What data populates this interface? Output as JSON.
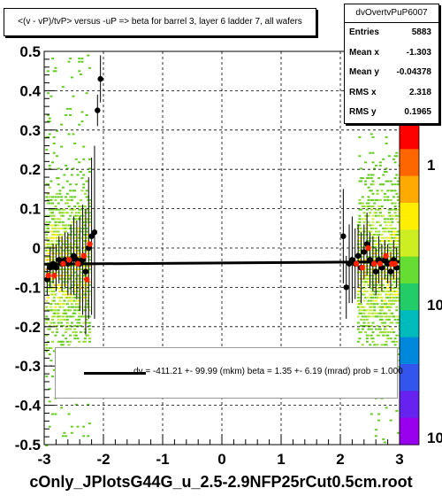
{
  "chart_data": {
    "type": "scatter",
    "title": "<(v - vP)/tvP> versus  -uP => beta for barrel 3, layer 6 ladder 7, all wafers",
    "xlim": [
      -3,
      3
    ],
    "ylim": [
      -0.5,
      0.5
    ],
    "x_ticks": [
      "-3",
      "-2",
      "-1",
      "0",
      "1",
      "2",
      "3"
    ],
    "y_ticks": [
      "-0.5",
      "-0.4",
      "-0.3",
      "-0.2",
      "-0.1",
      "0",
      "0.1",
      "0.2",
      "0.3",
      "0.4",
      "0.5"
    ],
    "grid": true,
    "colorbar_ticks": [
      "1",
      "10",
      "10"
    ],
    "series": [
      {
        "marker": "black-circle",
        "x": [
          -2.95,
          -2.9,
          -2.85,
          -2.8,
          -2.75,
          -2.7,
          -2.65,
          -2.6,
          -2.55,
          -2.5,
          -2.45,
          -2.4,
          -2.35,
          -2.3,
          -2.25,
          -2.2,
          -2.15,
          -2.1,
          -2.05,
          2.05,
          2.1,
          2.15,
          2.2,
          2.25,
          2.3,
          2.35,
          2.4,
          2.45,
          2.5,
          2.55,
          2.6,
          2.65,
          2.7,
          2.75,
          2.8,
          2.85,
          2.9,
          2.95
        ],
        "y": [
          -0.08,
          -0.05,
          -0.04,
          -0.05,
          -0.03,
          -0.04,
          -0.03,
          -0.04,
          -0.03,
          -0.02,
          -0.03,
          -0.04,
          -0.03,
          -0.06,
          0.0,
          0.03,
          0.04,
          0.35,
          0.43,
          0.03,
          -0.1,
          -0.04,
          -0.03,
          -0.04,
          -0.02,
          -0.05,
          -0.01,
          0.01,
          -0.03,
          -0.04,
          -0.06,
          -0.03,
          -0.05,
          -0.03,
          -0.04,
          -0.06,
          -0.03,
          -0.05
        ],
        "err": [
          0.04,
          0.05,
          0.05,
          0.06,
          0.06,
          0.07,
          0.07,
          0.08,
          0.09,
          0.1,
          0.1,
          0.12,
          0.14,
          0.16,
          0.18,
          0.2,
          0.22,
          0.04,
          0.06,
          0.12,
          0.08,
          0.1,
          0.11,
          0.09,
          0.08,
          0.09,
          0.07,
          0.08,
          0.07,
          0.07,
          0.06,
          0.06,
          0.06,
          0.05,
          0.05,
          0.05,
          0.05,
          0.05
        ]
      },
      {
        "marker": "red-circle",
        "x": [
          -2.93,
          -2.83,
          -2.68,
          -2.58,
          -2.43,
          -2.33,
          -2.28,
          -2.23,
          2.27,
          2.37,
          2.47,
          2.57,
          2.67,
          2.77,
          2.87,
          2.92
        ],
        "y": [
          -0.07,
          -0.07,
          -0.04,
          -0.03,
          -0.04,
          -0.02,
          -0.08,
          0.01,
          -0.04,
          -0.05,
          0.0,
          -0.04,
          -0.04,
          -0.02,
          -0.04,
          -0.04
        ]
      }
    ],
    "fit": {
      "x": [
        -3,
        3
      ],
      "y": [
        -0.041,
        -0.035
      ],
      "label": "dv = -411.21 +- 99.99 (mkm) beta =    1.35 +-  6.19 (mrad) prob = 1.000"
    },
    "stats": {
      "name": "dvOvertvPuP6007",
      "rows": [
        {
          "key": "Entries",
          "value": "5883"
        },
        {
          "key": "Mean x",
          "value": "-1.303"
        },
        {
          "key": "Mean y",
          "value": "-0.04378"
        },
        {
          "key": "RMS x",
          "value": "2.318"
        },
        {
          "key": "RMS y",
          "value": "0.1965"
        }
      ]
    },
    "footer": "cOnly_JPlotsG44G_u_2.5-2.9NFP25rCut0.5cm.root"
  }
}
